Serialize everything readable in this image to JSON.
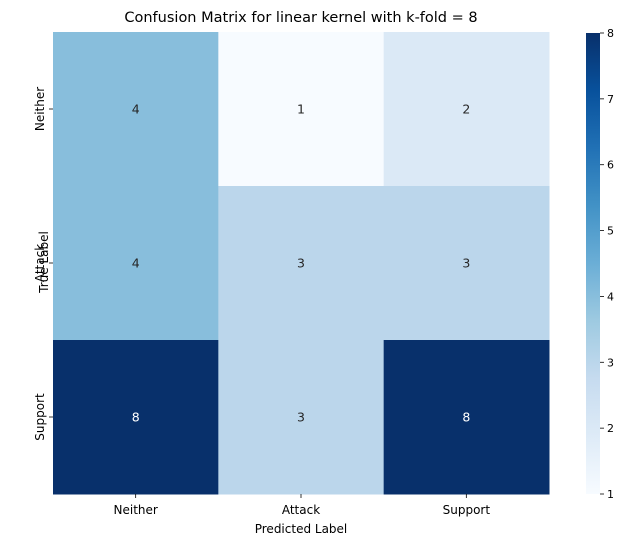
{
  "chart_data": {
    "type": "heatmap",
    "title": "Confusion Matrix for linear kernel with k-fold = 8",
    "xlabel": "Predicted Label",
    "ylabel": "True Label",
    "x_categories": [
      "Neither",
      "Attack",
      "Support"
    ],
    "y_categories": [
      "Neither",
      "Attack",
      "Support"
    ],
    "values": [
      [
        4,
        1,
        2
      ],
      [
        4,
        3,
        3
      ],
      [
        8,
        3,
        8
      ]
    ],
    "colorbar": {
      "min": 1,
      "max": 8,
      "ticks": [
        "1",
        "2",
        "3",
        "4",
        "5",
        "6",
        "7",
        "8"
      ],
      "colormap": "Blues",
      "low_color": "#f7fbff",
      "high_color": "#08306b"
    },
    "annotations": true,
    "grid": false,
    "legend": "colorbar-right"
  }
}
